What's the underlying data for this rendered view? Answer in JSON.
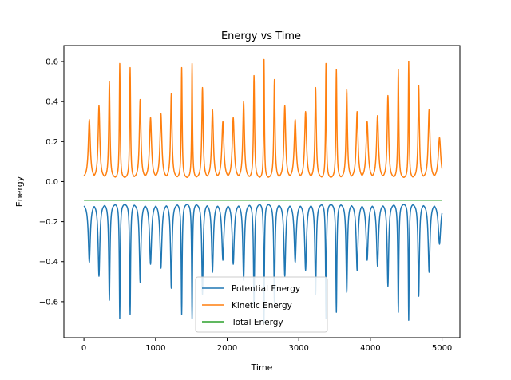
{
  "chart_data": {
    "type": "line",
    "title": "Energy vs Time",
    "xlabel": "Time",
    "ylabel": "Energy",
    "xlim": [
      -280,
      5250
    ],
    "ylim": [
      -0.78,
      0.68
    ],
    "x_ticks": [
      0,
      1000,
      2000,
      3000,
      4000,
      5000
    ],
    "x_tick_labels": [
      "0",
      "1000",
      "2000",
      "3000",
      "4000",
      "5000"
    ],
    "y_ticks": [
      -0.6,
      -0.4,
      -0.2,
      0.0,
      0.2,
      0.4,
      0.6
    ],
    "y_tick_labels": [
      "−0.6",
      "−0.4",
      "−0.2",
      "0.0",
      "0.2",
      "0.4",
      "0.6"
    ],
    "grid": false,
    "legend_position": "lower-center",
    "x_range": [
      0,
      5000
    ],
    "end_time": 5000,
    "peak_times": [
      75,
      210,
      355,
      500,
      645,
      785,
      930,
      1075,
      1220,
      1365,
      1510,
      1655,
      1795,
      1940,
      2085,
      2230,
      2375,
      2515,
      2660,
      2805,
      2950,
      3095,
      3235,
      3380,
      3525,
      3670,
      3815,
      3955,
      4100,
      4245,
      4390,
      4535,
      4675,
      4820,
      4965
    ],
    "peak_kinetic": [
      0.31,
      0.38,
      0.5,
      0.59,
      0.57,
      0.41,
      0.32,
      0.34,
      0.44,
      0.57,
      0.59,
      0.47,
      0.36,
      0.3,
      0.32,
      0.4,
      0.53,
      0.61,
      0.51,
      0.38,
      0.31,
      0.35,
      0.47,
      0.59,
      0.56,
      0.46,
      0.35,
      0.3,
      0.33,
      0.43,
      0.56,
      0.6,
      0.48,
      0.36,
      0.22
    ],
    "kinetic_min": 0.015,
    "potential_max": -0.105,
    "total_energy": -0.093,
    "series": [
      {
        "name": "Potential Energy",
        "color": "#1f77b4"
      },
      {
        "name": "Kinetic Energy",
        "color": "#ff7f0e"
      },
      {
        "name": "Total Energy",
        "color": "#2ca02c"
      }
    ]
  }
}
